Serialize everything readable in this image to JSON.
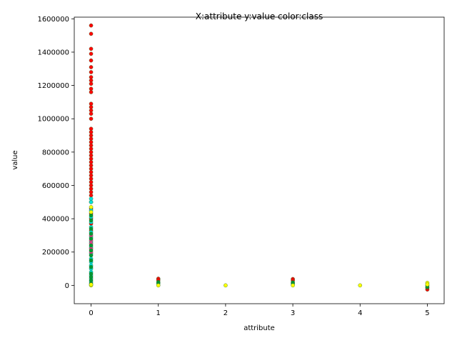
{
  "chart_data": {
    "type": "scatter",
    "title": "X:attribute y:value color:class",
    "xlabel": "attribute",
    "ylabel": "value",
    "xlim": [
      -0.25,
      5.25
    ],
    "ylim": [
      -110000,
      1610000
    ],
    "xticks": [
      0,
      1,
      2,
      3,
      4,
      5
    ],
    "xtick_labels": [
      "0",
      "1",
      "2",
      "3",
      "4",
      "5"
    ],
    "yticks": [
      0,
      200000,
      400000,
      600000,
      800000,
      1000000,
      1200000,
      1400000,
      1600000
    ],
    "ytick_labels": [
      "0",
      "200000",
      "400000",
      "600000",
      "800000",
      "1000000",
      "1200000",
      "1400000",
      "1600000"
    ],
    "grid": false,
    "legend": false,
    "marker_edge_color": "#2c6e2c",
    "series": [
      {
        "color": "#ff0000",
        "points": [
          [
            0,
            1560000
          ],
          [
            0,
            1510000
          ],
          [
            0,
            1420000
          ],
          [
            0,
            1390000
          ],
          [
            0,
            1350000
          ],
          [
            0,
            1310000
          ],
          [
            0,
            1280000
          ],
          [
            0,
            1250000
          ],
          [
            0,
            1230000
          ],
          [
            0,
            1210000
          ],
          [
            0,
            1180000
          ],
          [
            0,
            1160000
          ],
          [
            0,
            1090000
          ],
          [
            0,
            1070000
          ],
          [
            0,
            1050000
          ],
          [
            0,
            1030000
          ],
          [
            0,
            1000000
          ],
          [
            0,
            940000
          ],
          [
            0,
            920000
          ],
          [
            0,
            900000
          ],
          [
            0,
            880000
          ],
          [
            0,
            860000
          ],
          [
            0,
            840000
          ],
          [
            0,
            820000
          ],
          [
            0,
            800000
          ],
          [
            0,
            780000
          ],
          [
            0,
            760000
          ],
          [
            0,
            740000
          ],
          [
            0,
            720000
          ],
          [
            0,
            700000
          ],
          [
            0,
            680000
          ],
          [
            0,
            660000
          ],
          [
            0,
            640000
          ],
          [
            0,
            620000
          ],
          [
            0,
            600000
          ],
          [
            0,
            580000
          ],
          [
            0,
            560000
          ],
          [
            0,
            540000
          ],
          [
            0,
            500000
          ],
          [
            0,
            460000
          ],
          [
            0,
            430000
          ],
          [
            0,
            400000
          ],
          [
            0,
            370000
          ],
          [
            0,
            330000
          ],
          [
            1,
            40000
          ],
          [
            1,
            32000
          ],
          [
            3,
            38000
          ],
          [
            3,
            30000
          ],
          [
            5,
            -25000
          ],
          [
            5,
            -15000
          ]
        ]
      },
      {
        "color": "#00e0e0",
        "points": [
          [
            0,
            520000
          ],
          [
            0,
            500000
          ],
          [
            0,
            450000
          ],
          [
            0,
            410000
          ],
          [
            0,
            380000
          ],
          [
            0,
            350000
          ],
          [
            0,
            320000
          ],
          [
            0,
            290000
          ],
          [
            0,
            260000
          ],
          [
            0,
            230000
          ],
          [
            0,
            190000
          ],
          [
            0,
            160000
          ],
          [
            0,
            140000
          ],
          [
            0,
            120000
          ],
          [
            0,
            100000
          ],
          [
            0,
            80000
          ],
          [
            0,
            60000
          ],
          [
            0,
            40000
          ],
          [
            0,
            20000
          ]
        ]
      },
      {
        "color": "#ff3399",
        "points": [
          [
            0,
            300000
          ],
          [
            0,
            270000
          ],
          [
            0,
            250000
          ],
          [
            0,
            220000
          ],
          [
            0,
            200000
          ]
        ]
      },
      {
        "color": "#009933",
        "points": [
          [
            0,
            420000
          ],
          [
            0,
            390000
          ],
          [
            0,
            340000
          ],
          [
            0,
            310000
          ],
          [
            0,
            280000
          ],
          [
            0,
            240000
          ],
          [
            0,
            210000
          ],
          [
            0,
            180000
          ],
          [
            0,
            150000
          ],
          [
            0,
            110000
          ],
          [
            0,
            70000
          ],
          [
            0,
            50000
          ],
          [
            0,
            30000
          ],
          [
            0,
            10000
          ],
          [
            1,
            20000
          ],
          [
            1,
            12000
          ],
          [
            3,
            18000
          ],
          [
            3,
            10000
          ],
          [
            5,
            -10000
          ],
          [
            5,
            0
          ]
        ]
      },
      {
        "color": "#ffff00",
        "points": [
          [
            0,
            470000
          ],
          [
            0,
            440000
          ],
          [
            0,
            0
          ],
          [
            0,
            5000
          ],
          [
            1,
            0
          ],
          [
            2,
            0
          ],
          [
            3,
            0
          ],
          [
            4,
            0
          ],
          [
            5,
            15000
          ],
          [
            5,
            5000
          ]
        ]
      }
    ]
  }
}
